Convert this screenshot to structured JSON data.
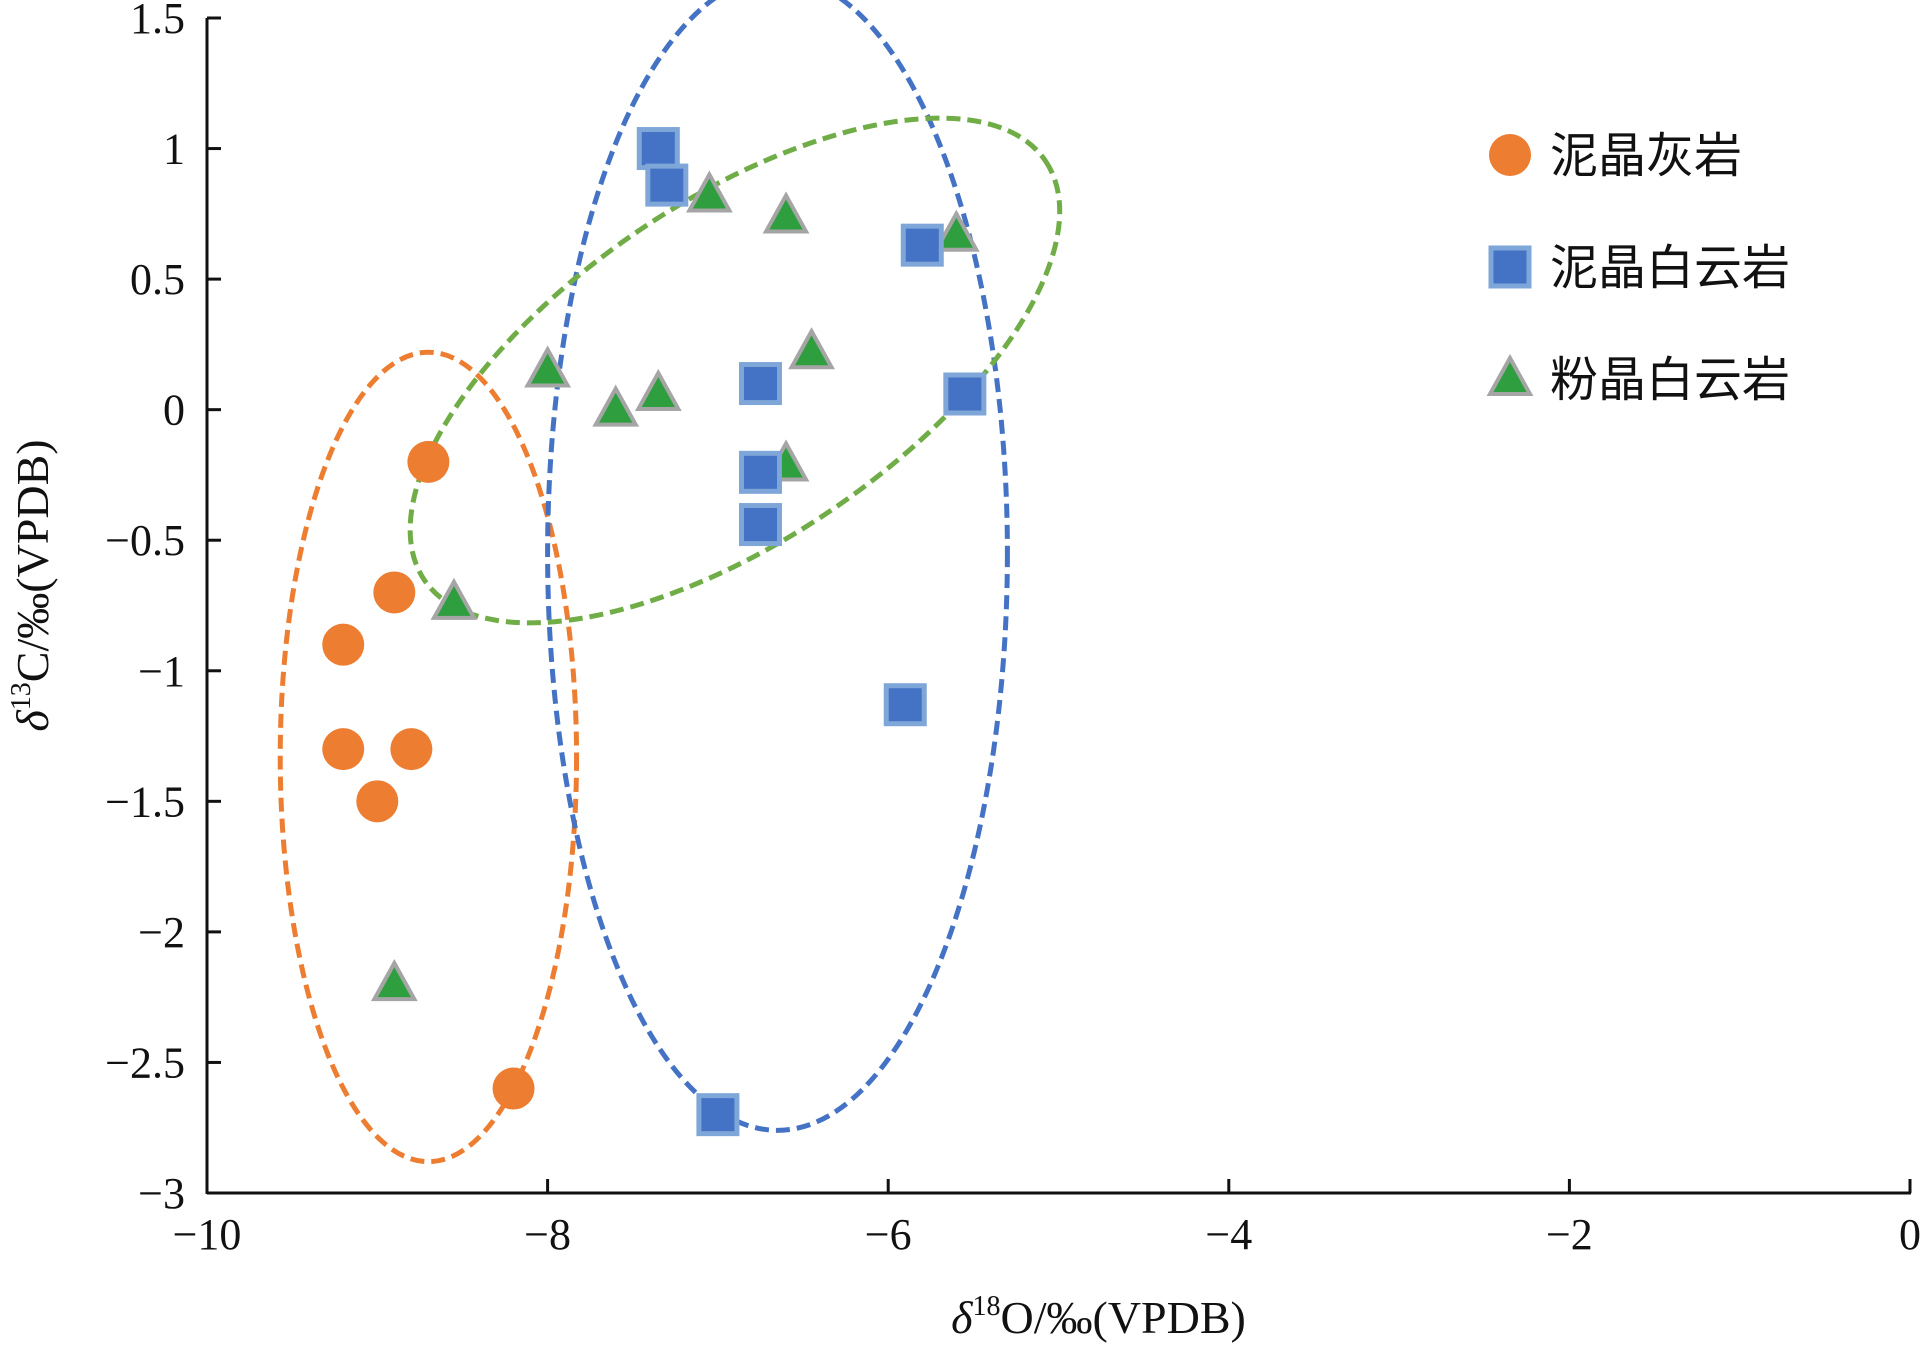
{
  "chart_data": {
    "type": "scatter",
    "xlabel": {
      "delta": "δ",
      "sup": "18",
      "rest": "O/‰(VPDB)"
    },
    "ylabel": {
      "delta": "δ",
      "sup": "13",
      "rest": "C/‰(VPDB)"
    },
    "xlim": [
      -10,
      0
    ],
    "ylim": [
      -3,
      1.5
    ],
    "x_ticks": [
      {
        "value": -10,
        "label": "−10"
      },
      {
        "value": -8,
        "label": "−8"
      },
      {
        "value": -6,
        "label": "−6"
      },
      {
        "value": -4,
        "label": "−4"
      },
      {
        "value": -2,
        "label": "−2"
      },
      {
        "value": 0,
        "label": "0"
      }
    ],
    "y_ticks": [
      {
        "value": 1.5,
        "label": "1.5"
      },
      {
        "value": 1,
        "label": "1"
      },
      {
        "value": 0.5,
        "label": "0.5"
      },
      {
        "value": 0,
        "label": "0"
      },
      {
        "value": -0.5,
        "label": "−0.5"
      },
      {
        "value": -1,
        "label": "−1"
      },
      {
        "value": -1.5,
        "label": "−1.5"
      },
      {
        "value": -2,
        "label": "−2"
      },
      {
        "value": -2.5,
        "label": "−2.5"
      },
      {
        "value": -3,
        "label": "−3"
      }
    ],
    "grid": false,
    "legend_position": "top-right",
    "series": [
      {
        "name": "泥晶灰岩",
        "marker": "circle",
        "color": "#ED7D31",
        "points": [
          {
            "x": -8.7,
            "y": -0.2
          },
          {
            "x": -8.9,
            "y": -0.7
          },
          {
            "x": -9.2,
            "y": -0.9
          },
          {
            "x": -9.2,
            "y": -1.3
          },
          {
            "x": -8.8,
            "y": -1.3
          },
          {
            "x": -9.0,
            "y": -1.5
          },
          {
            "x": -8.2,
            "y": -2.6
          }
        ]
      },
      {
        "name": "泥晶白云岩",
        "marker": "square",
        "color": "#4472C4",
        "points": [
          {
            "x": -7.35,
            "y": 1.0
          },
          {
            "x": -7.3,
            "y": 0.86
          },
          {
            "x": -5.8,
            "y": 0.63
          },
          {
            "x": -5.55,
            "y": 0.06
          },
          {
            "x": -6.75,
            "y": 0.1
          },
          {
            "x": -6.75,
            "y": -0.24
          },
          {
            "x": -6.75,
            "y": -0.44
          },
          {
            "x": -5.9,
            "y": -1.13
          },
          {
            "x": -7.0,
            "y": -2.7
          }
        ]
      },
      {
        "name": "粉晶白云岩",
        "marker": "triangle",
        "color": "#2E9E3F",
        "stroke": "#A5A5A5",
        "points": [
          {
            "x": -7.05,
            "y": 0.82
          },
          {
            "x": -6.6,
            "y": 0.74
          },
          {
            "x": -5.6,
            "y": 0.67
          },
          {
            "x": -6.45,
            "y": 0.22
          },
          {
            "x": -8.0,
            "y": 0.15
          },
          {
            "x": -7.35,
            "y": 0.06
          },
          {
            "x": -7.6,
            "y": 0.0
          },
          {
            "x": -6.6,
            "y": -0.21
          },
          {
            "x": -8.55,
            "y": -0.74
          },
          {
            "x": -8.9,
            "y": -2.2
          }
        ]
      }
    ],
    "ellipses": [
      {
        "series": "泥晶灰岩",
        "color": "#ED7D31",
        "center": [
          -8.7,
          -1.33
        ],
        "semi_x": 0.87,
        "semi_y": 1.55,
        "rotation_deg": 0
      },
      {
        "series": "泥晶白云岩",
        "color": "#4472C4",
        "center": [
          -6.65,
          -0.55
        ],
        "semi_x": 1.35,
        "semi_y": 2.21,
        "rotation_deg": 0
      },
      {
        "series": "粉晶白云岩",
        "color": "#70AD47",
        "center": [
          -6.9,
          0.15
        ],
        "semi_x": 2.2,
        "semi_y": 0.65,
        "rotation_deg": 34
      }
    ]
  }
}
